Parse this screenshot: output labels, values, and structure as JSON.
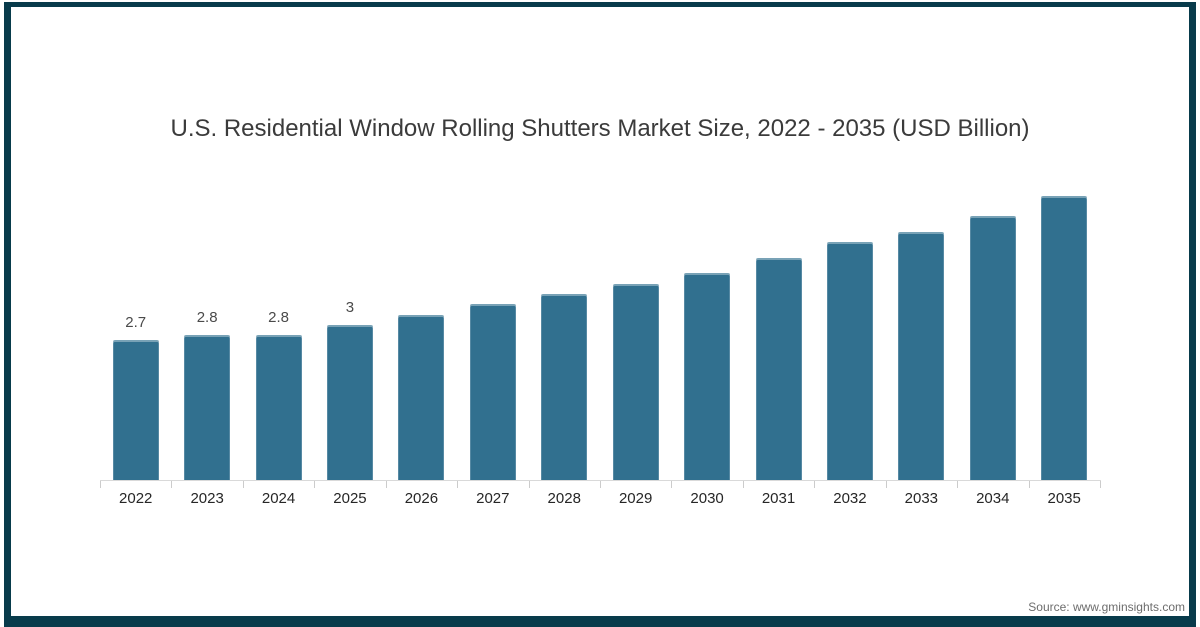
{
  "frame": {
    "border_color": "#083B4B"
  },
  "chart_data": {
    "type": "bar",
    "title": "U.S. Residential Window Rolling Shutters Market Size, 2022 - 2035 (USD Billion)",
    "categories": [
      "2022",
      "2023",
      "2024",
      "2025",
      "2026",
      "2027",
      "2028",
      "2029",
      "2030",
      "2031",
      "2032",
      "2033",
      "2034",
      "2035"
    ],
    "values": [
      2.7,
      2.8,
      2.8,
      3,
      3.2,
      3.4,
      3.6,
      3.8,
      4,
      4.3,
      4.6,
      4.8,
      5.1,
      5.5
    ],
    "data_labels": [
      "2.7",
      "2.8",
      "2.8",
      "3",
      "",
      "",
      "",
      "",
      "",
      "",
      "",
      "",
      "",
      ""
    ],
    "xlabel": "",
    "ylabel": "",
    "ylim": [
      0,
      5.8
    ],
    "grid": false,
    "legend": "none",
    "bar_color": "#31708F",
    "value_label_color": "#4a4a4a",
    "axis_line_color": "#d9d9d9",
    "tick_color": "#cccccc",
    "x_label_color": "#262626",
    "title_color": "#3b3b3b"
  },
  "footer": {
    "source_label": "Source: www.gminsights.com"
  }
}
